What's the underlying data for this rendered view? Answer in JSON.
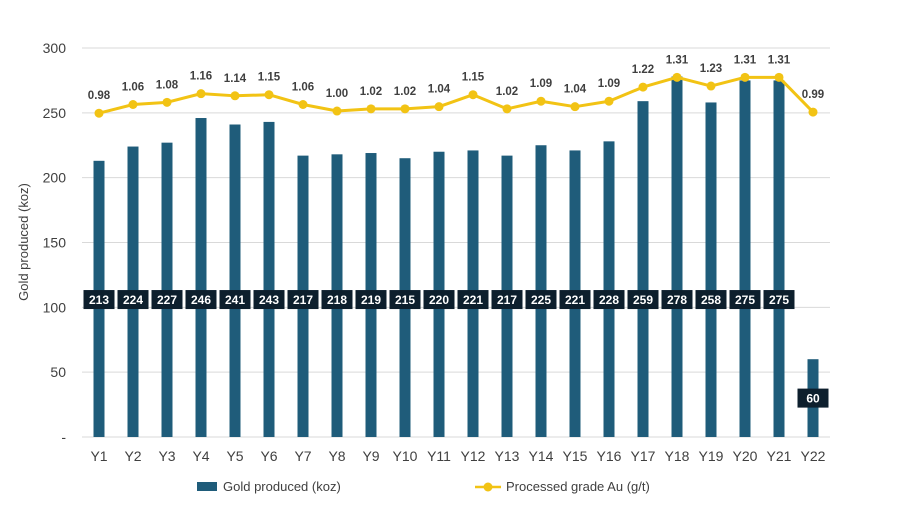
{
  "chart_data": {
    "type": "bar",
    "categories": [
      "Y1",
      "Y2",
      "Y3",
      "Y4",
      "Y5",
      "Y6",
      "Y7",
      "Y8",
      "Y9",
      "Y10",
      "Y11",
      "Y12",
      "Y13",
      "Y14",
      "Y15",
      "Y16",
      "Y17",
      "Y18",
      "Y19",
      "Y20",
      "Y21",
      "Y22"
    ],
    "series": [
      {
        "name": "Gold produced (koz)",
        "type": "bar",
        "axis": "left",
        "color": "#1F5C7A",
        "values": [
          213,
          224,
          227,
          246,
          241,
          243,
          217,
          218,
          219,
          215,
          220,
          221,
          217,
          225,
          221,
          228,
          259,
          278,
          258,
          275,
          275,
          60
        ]
      },
      {
        "name": "Processed grade Au (g/t)",
        "type": "line",
        "axis": "secondary-hidden",
        "color": "#F2C314",
        "values": [
          0.98,
          1.06,
          1.08,
          1.16,
          1.14,
          1.15,
          1.06,
          1.0,
          1.02,
          1.02,
          1.04,
          1.15,
          1.02,
          1.09,
          1.04,
          1.09,
          1.22,
          1.31,
          1.23,
          1.31,
          1.31,
          0.99
        ],
        "value_labels": [
          "0.98",
          "1.06",
          "1.08",
          "1.16",
          "1.14",
          "1.15",
          "1.06",
          "1.00",
          "1.02",
          "1.02",
          "1.04",
          "1.15",
          "1.02",
          "1.09",
          "1.04",
          "1.09",
          "1.22",
          "1.31",
          "1.23",
          "1.31",
          "1.31",
          "0.99"
        ]
      }
    ],
    "ylabel": "Gold produced (koz)",
    "ylim": [
      0,
      300
    ],
    "yticks": [
      0,
      50,
      100,
      150,
      200,
      250,
      300
    ],
    "ytick_labels": [
      "-",
      "50",
      "100",
      "150",
      "200",
      "250",
      "300"
    ],
    "secondary_ylim": [
      -2.0,
      1.58
    ],
    "grid": true,
    "legend": "bottom"
  }
}
